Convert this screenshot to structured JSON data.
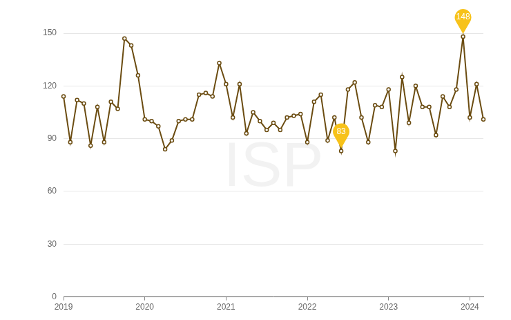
{
  "chart_data": {
    "type": "line",
    "watermark": "ISP",
    "categories": [
      "2019",
      null,
      null,
      null,
      null,
      null,
      null,
      null,
      null,
      null,
      null,
      null,
      "2020",
      null,
      null,
      null,
      null,
      null,
      null,
      null,
      null,
      null,
      null,
      null,
      "2021",
      null,
      null,
      null,
      null,
      null,
      null,
      null,
      null,
      null,
      null,
      null,
      "2022",
      null,
      null,
      null,
      null,
      null,
      null,
      null,
      null,
      null,
      null,
      null,
      "2023",
      null,
      null,
      null,
      null,
      null,
      null,
      null,
      null,
      null,
      null,
      null,
      "2024",
      null,
      null
    ],
    "values": [
      114,
      88,
      112,
      110,
      86,
      108,
      88,
      111,
      107,
      147,
      143,
      126,
      101,
      100,
      97,
      84,
      89,
      100,
      101,
      101,
      115,
      116,
      114,
      133,
      121,
      102,
      121,
      93,
      105,
      100,
      95,
      99,
      95,
      102,
      103,
      104,
      88,
      111,
      115,
      89,
      102,
      83,
      118,
      122,
      102,
      88,
      109,
      108,
      118,
      83,
      125,
      99,
      120,
      108,
      108,
      92,
      114,
      108,
      118,
      148,
      102,
      121,
      101
    ],
    "color": "#6b4c11",
    "marker": "circle",
    "annotations": [
      {
        "point": 41,
        "value": 83
      },
      {
        "point": 59,
        "value": 148
      }
    ],
    "ylim": [
      0,
      150
    ],
    "yticks": [
      0,
      30,
      60,
      90,
      120,
      150
    ],
    "grid": true
  }
}
